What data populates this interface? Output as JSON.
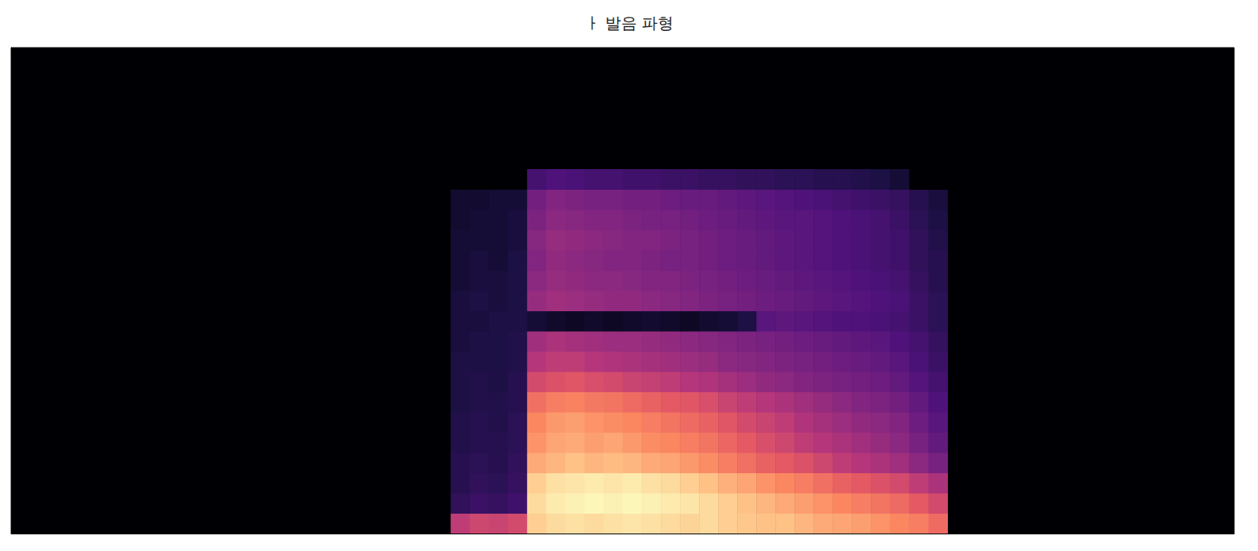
{
  "chart_data": {
    "type": "heatmap",
    "title": "ㅏ 발음 파형",
    "xlim": [
      0,
      64
    ],
    "ylim": [
      0,
      24
    ],
    "tick_labels": false,
    "color_range": [
      -80,
      0
    ],
    "x": [
      23,
      24,
      25,
      26,
      27,
      28,
      29,
      30,
      31,
      32,
      33,
      34,
      35,
      36,
      37,
      38,
      39,
      40,
      41,
      42,
      43,
      44,
      45,
      46,
      47,
      48
    ],
    "y": [
      0,
      1,
      2,
      3,
      4,
      5,
      6,
      7,
      8,
      9,
      10,
      11,
      12,
      13,
      14,
      15,
      16,
      17
    ],
    "z": [
      [
        -38,
        -35,
        -36,
        -34,
        -8,
        -6,
        -5,
        -6,
        -5,
        -4,
        -5,
        -6,
        -7,
        -6,
        -8,
        -9,
        -10,
        -10,
        -12,
        -14,
        -15,
        -16,
        -18,
        -20,
        -22,
        -26
      ],
      [
        -66,
        -64,
        -65,
        -63,
        -6,
        -3,
        -2,
        -1,
        -2,
        -1,
        -2,
        -3,
        -4,
        -6,
        -8,
        -10,
        -12,
        -14,
        -16,
        -18,
        -20,
        -22,
        -24,
        -26,
        -30,
        -34
      ],
      [
        -68,
        -66,
        -67,
        -65,
        -8,
        -5,
        -4,
        -3,
        -4,
        -3,
        -5,
        -6,
        -8,
        -10,
        -13,
        -15,
        -18,
        -20,
        -22,
        -25,
        -28,
        -30,
        -32,
        -34,
        -38,
        -42
      ],
      [
        -68,
        -67,
        -68,
        -66,
        -14,
        -12,
        -10,
        -12,
        -11,
        -12,
        -14,
        -15,
        -17,
        -19,
        -22,
        -25,
        -28,
        -30,
        -32,
        -35,
        -38,
        -40,
        -42,
        -44,
        -48,
        -52
      ],
      [
        -69,
        -68,
        -68,
        -67,
        -18,
        -15,
        -14,
        -16,
        -15,
        -17,
        -19,
        -20,
        -22,
        -24,
        -27,
        -30,
        -33,
        -35,
        -38,
        -40,
        -42,
        -44,
        -46,
        -48,
        -52,
        -56
      ],
      [
        -69,
        -68,
        -69,
        -67,
        -20,
        -17,
        -16,
        -18,
        -19,
        -20,
        -22,
        -24,
        -26,
        -28,
        -31,
        -34,
        -36,
        -38,
        -41,
        -43,
        -45,
        -47,
        -48,
        -50,
        -54,
        -58
      ],
      [
        -70,
        -69,
        -69,
        -68,
        -25,
        -22,
        -21,
        -23,
        -24,
        -26,
        -28,
        -30,
        -31,
        -33,
        -36,
        -38,
        -40,
        -42,
        -44,
        -46,
        -48,
        -50,
        -51,
        -53,
        -56,
        -60
      ],
      [
        -70,
        -69,
        -70,
        -68,
        -34,
        -32,
        -31,
        -33,
        -34,
        -36,
        -37,
        -38,
        -40,
        -41,
        -43,
        -45,
        -47,
        -48,
        -50,
        -51,
        -52,
        -53,
        -54,
        -56,
        -59,
        -62
      ],
      [
        -70,
        -70,
        -70,
        -69,
        -40,
        -38,
        -38,
        -40,
        -41,
        -42,
        -43,
        -44,
        -45,
        -46,
        -48,
        -49,
        -50,
        -51,
        -52,
        -53,
        -54,
        -55,
        -56,
        -58,
        -61,
        -64
      ],
      [
        -71,
        -70,
        -70,
        -69,
        -44,
        -42,
        -43,
        -44,
        -45,
        -45,
        -46,
        -47,
        -48,
        -49,
        -50,
        -51,
        -52,
        -53,
        -54,
        -55,
        -56,
        -57,
        -58,
        -60,
        -62,
        -65
      ],
      [
        -71,
        -71,
        -70,
        -70,
        -72,
        -74,
        -75,
        -74,
        -75,
        -74,
        -73,
        -74,
        -75,
        -73,
        -72,
        -70,
        -58,
        -57,
        -58,
        -59,
        -60,
        -60,
        -61,
        -62,
        -64,
        -67
      ],
      [
        -71,
        -70,
        -71,
        -70,
        -46,
        -44,
        -45,
        -46,
        -47,
        -47,
        -48,
        -49,
        -50,
        -51,
        -52,
        -53,
        -54,
        -55,
        -56,
        -57,
        -58,
        -59,
        -60,
        -61,
        -64,
        -67
      ],
      [
        -72,
        -71,
        -71,
        -70,
        -48,
        -46,
        -47,
        -48,
        -48,
        -49,
        -50,
        -50,
        -51,
        -52,
        -53,
        -54,
        -55,
        -56,
        -57,
        -58,
        -59,
        -60,
        -61,
        -62,
        -65,
        -68
      ],
      [
        -72,
        -71,
        -72,
        -70,
        -50,
        -47,
        -48,
        -49,
        -50,
        -50,
        -51,
        -52,
        -52,
        -53,
        -54,
        -55,
        -56,
        -57,
        -58,
        -59,
        -60,
        -61,
        -62,
        -63,
        -66,
        -68
      ],
      [
        -72,
        -72,
        -72,
        -71,
        -49,
        -46,
        -47,
        -48,
        -49,
        -50,
        -50,
        -51,
        -52,
        -53,
        -54,
        -55,
        -56,
        -57,
        -58,
        -59,
        -60,
        -61,
        -62,
        -63,
        -66,
        -69
      ],
      [
        -73,
        -72,
        -72,
        -71,
        -51,
        -48,
        -49,
        -50,
        -50,
        -51,
        -52,
        -52,
        -53,
        -54,
        -55,
        -56,
        -57,
        -58,
        -58,
        -59,
        -60,
        -61,
        -62,
        -64,
        -67,
        -70
      ],
      [
        -73,
        -73,
        -72,
        -72,
        -53,
        -50,
        -51,
        -52,
        -52,
        -53,
        -53,
        -54,
        -55,
        -55,
        -56,
        -57,
        -58,
        -59,
        -60,
        -61,
        -62,
        -63,
        -64,
        -65,
        -68,
        -71
      ],
      [
        -80,
        -80,
        -80,
        -80,
        -62,
        -60,
        -61,
        -62,
        -62,
        -63,
        -63,
        -64,
        -64,
        -65,
        -65,
        -66,
        -66,
        -67,
        -67,
        -68,
        -68,
        -69,
        -70,
        -72,
        -80,
        -80
      ]
    ]
  }
}
